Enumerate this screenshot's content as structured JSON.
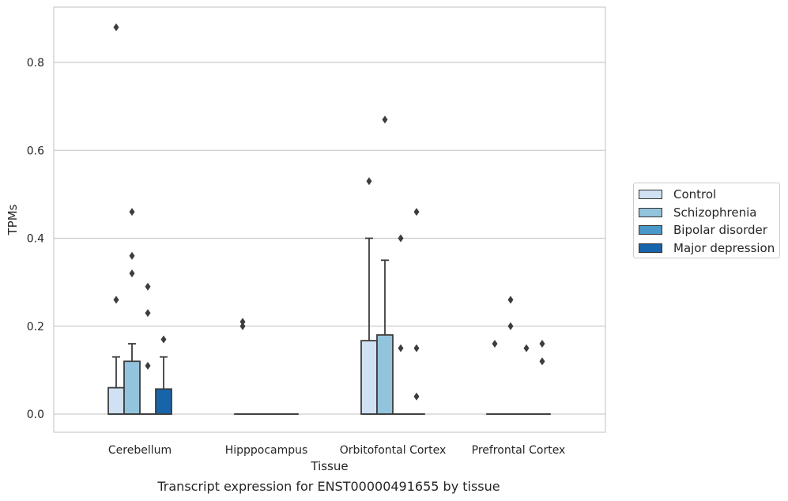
{
  "chart_data": {
    "type": "box",
    "caption": "Transcript expression for ENST00000491655 by tissue",
    "xlabel": "Tissue",
    "ylabel": "TPMs",
    "ylim": [
      -0.043,
      0.93
    ],
    "yticks": [
      "0.0",
      "0.2",
      "0.4",
      "0.6",
      "0.8"
    ],
    "grid": true,
    "legend_position": "right",
    "categories": [
      "Cerebellum",
      "Hipppocampus",
      "Orbitofontal Cortex",
      "Prefrontal Cortex"
    ],
    "series": [
      {
        "name": "Control",
        "color": "#cfe1f2",
        "boxes": [
          {
            "q1": 0,
            "median": 0,
            "q3": 0.06,
            "whisker_low": 0,
            "whisker_high": 0.13,
            "outliers": [
              0.26,
              0.88
            ]
          },
          {
            "q1": 0,
            "median": 0,
            "q3": 0,
            "whisker_low": 0,
            "whisker_high": 0,
            "outliers": [
              0.2,
              0.21
            ]
          },
          {
            "q1": 0,
            "median": 0,
            "q3": 0.167,
            "whisker_low": 0,
            "whisker_high": 0.4,
            "outliers": [
              0.53
            ]
          },
          {
            "q1": 0,
            "median": 0,
            "q3": 0,
            "whisker_low": 0,
            "whisker_high": 0,
            "outliers": [
              0.16
            ]
          }
        ]
      },
      {
        "name": "Schizophrenia",
        "color": "#93c4de",
        "boxes": [
          {
            "q1": 0,
            "median": 0,
            "q3": 0.12,
            "whisker_low": 0,
            "whisker_high": 0.16,
            "outliers": [
              0.32,
              0.36,
              0.46
            ]
          },
          {
            "q1": 0,
            "median": 0,
            "q3": 0,
            "whisker_low": 0,
            "whisker_high": 0,
            "outliers": []
          },
          {
            "q1": 0,
            "median": 0,
            "q3": 0.18,
            "whisker_low": 0,
            "whisker_high": 0.35,
            "outliers": [
              0.67
            ]
          },
          {
            "q1": 0,
            "median": 0,
            "q3": 0,
            "whisker_low": 0,
            "whisker_high": 0,
            "outliers": [
              0.2,
              0.26
            ]
          }
        ]
      },
      {
        "name": "Bipolar disorder",
        "color": "#4a98c9",
        "boxes": [
          {
            "q1": 0,
            "median": 0,
            "q3": 0,
            "whisker_low": 0,
            "whisker_high": 0,
            "outliers": [
              0.11,
              0.23,
              0.29
            ]
          },
          {
            "q1": 0,
            "median": 0,
            "q3": 0,
            "whisker_low": 0,
            "whisker_high": 0,
            "outliers": []
          },
          {
            "q1": 0,
            "median": 0,
            "q3": 0,
            "whisker_low": 0,
            "whisker_high": 0,
            "outliers": [
              0.15,
              0.4
            ]
          },
          {
            "q1": 0,
            "median": 0,
            "q3": 0,
            "whisker_low": 0,
            "whisker_high": 0,
            "outliers": [
              0.15
            ]
          }
        ]
      },
      {
        "name": "Major depression",
        "color": "#1764ab",
        "boxes": [
          {
            "q1": 0,
            "median": 0,
            "q3": 0.057,
            "whisker_low": 0,
            "whisker_high": 0.13,
            "outliers": [
              0.17
            ]
          },
          {
            "q1": 0,
            "median": 0,
            "q3": 0,
            "whisker_low": 0,
            "whisker_high": 0,
            "outliers": []
          },
          {
            "q1": 0,
            "median": 0,
            "q3": 0,
            "whisker_low": 0,
            "whisker_high": 0,
            "outliers": [
              0.04,
              0.15,
              0.46
            ]
          },
          {
            "q1": 0,
            "median": 0,
            "q3": 0,
            "whisker_low": 0,
            "whisker_high": 0,
            "outliers": [
              0.12,
              0.16
            ]
          }
        ]
      }
    ]
  }
}
